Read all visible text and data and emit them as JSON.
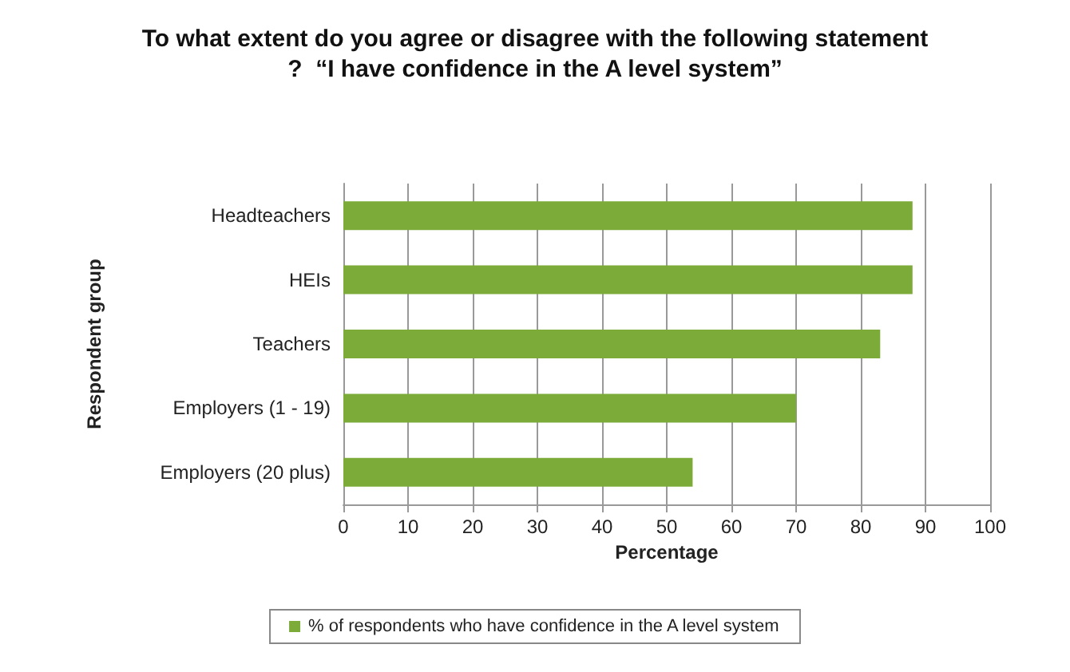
{
  "chart_data": {
    "type": "bar",
    "orientation": "horizontal",
    "title": "To what extent do you agree or disagree with the following statement?  “I have confidence in the A level system”",
    "xlabel": "Percentage",
    "ylabel": "Respondent group",
    "categories": [
      "Headteachers",
      "HEIs",
      "Teachers",
      "Employers (1 - 19)",
      "Employers (20 plus)"
    ],
    "series": [
      {
        "name": "% of respondents who have confidence in the A level system",
        "color": "#7dab3a",
        "values": [
          88,
          88,
          83,
          70,
          54
        ]
      }
    ],
    "xlim": [
      0,
      100
    ],
    "xticks": [
      0,
      10,
      20,
      30,
      40,
      50,
      60,
      70,
      80,
      90,
      100
    ],
    "grid": "x",
    "legend": "bottom"
  }
}
